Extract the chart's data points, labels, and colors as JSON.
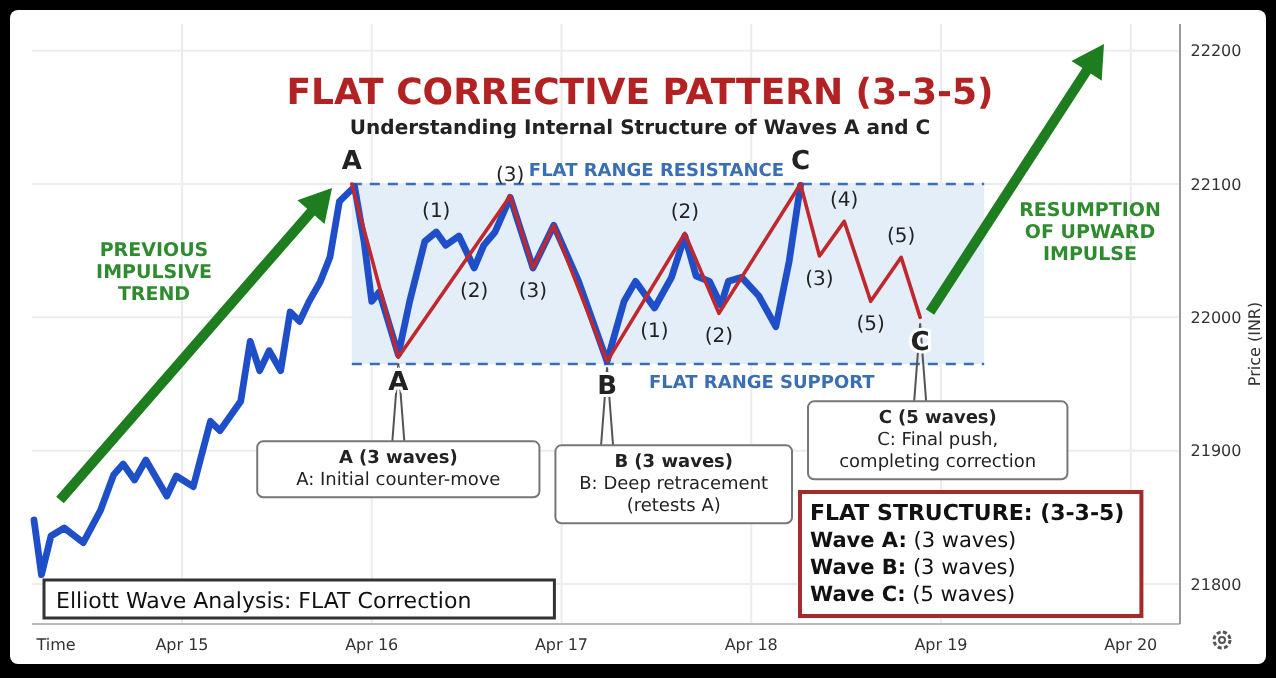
{
  "chart_data": {
    "type": "line",
    "title": "FLAT CORRECTIVE PATTERN (3-3-5)",
    "subtitle": "Understanding Internal Structure of Waves A and C",
    "xlabel": "Time",
    "ylabel": "Price (INR)",
    "xlim": [
      "--04-14T05:02",
      "--04-20T06:14"
    ],
    "xticks": [
      {
        "value": "--04-15",
        "label": "Apr 15"
      },
      {
        "value": "--04-16",
        "label": "Apr 16"
      },
      {
        "value": "--04-17",
        "label": "Apr 17"
      },
      {
        "value": "--04-18",
        "label": "Apr 18"
      },
      {
        "value": "--04-19",
        "label": "Apr 19"
      },
      {
        "value": "--04-20",
        "label": "Apr 20"
      }
    ],
    "ylim": [
      21770,
      22220
    ],
    "yticks": [
      21800,
      21900,
      22000,
      22100,
      22200
    ],
    "grid": true,
    "marker": "none",
    "line_style": "solid",
    "series": [
      {
        "color": "#1f4fc8",
        "x": [
          "--04-14T05:17",
          "--04-14T06:14",
          "--04-14T07:26",
          "--04-14T09:07",
          "--04-14T11:31",
          "--04-14T13:41",
          "--04-14T15:22",
          "--04-14T16:34",
          "--04-14T18:00",
          "--04-14T19:26",
          "--04-14T22:05",
          "--04-14T23:17",
          "--04-15T01:26",
          "--04-15T03:36",
          "--04-15T04:48",
          "--04-15T07:26",
          "--04-15T08:38",
          "--04-15T09:50",
          "--04-15T11:02",
          "--04-15T12:29",
          "--04-15T13:41",
          "--04-15T14:53",
          "--04-15T16:05",
          "--04-15T17:31",
          "--04-15T18:43",
          "--04-15T19:55",
          "--04-15T21:50",
          "--04-15T23:02",
          "--04-16T00:00",
          "--04-16T00:58",
          "--04-16T03:22",
          "--04-16T04:48",
          "--04-16T06:43",
          "--04-16T08:10",
          "--04-16T09:22",
          "--04-16T11:02",
          "--04-16T12:58",
          "--04-16T14:10",
          "--04-16T15:36",
          "--04-16T17:31",
          "--04-16T20:24",
          "--04-16T23:02",
          "--04-17T02:10",
          "--04-17T05:46",
          "--04-17T07:55",
          "--04-17T09:22",
          "--04-17T11:46",
          "--04-17T13:55",
          "--04-17T15:36",
          "--04-17T17:02",
          "--04-17T18:43",
          "--04-17T20:10",
          "--04-17T21:07",
          "--04-17T22:48",
          "--04-18T00:58",
          "--04-18T03:07",
          "--04-18T04:48",
          "--04-18T06:14"
        ],
        "values": [
          21848,
          21807,
          21836,
          21842,
          21831,
          21855,
          21882,
          21890,
          21878,
          21893,
          21866,
          21881,
          21873,
          21922,
          21915,
          21937,
          21982,
          21960,
          21975,
          21960,
          22004,
          21997,
          22012,
          22027,
          22045,
          22087,
          22098,
          22057,
          22012,
          22019,
          21972,
          22012,
          22057,
          22064,
          22054,
          22061,
          22037,
          22054,
          22064,
          22090,
          22037,
          22069,
          22027,
          21967,
          22012,
          22027,
          22007,
          22030,
          22061,
          22031,
          22027,
          22009,
          22027,
          22030,
          22016,
          21993,
          22042,
          22099
        ]
      },
      {
        "color": "#c0282d",
        "x": [
          "--04-15T21:29",
          "--04-16T03:22",
          "--04-16T17:31",
          "--04-16T20:24",
          "--04-16T23:02",
          "--04-17T05:46",
          "--04-17T15:36",
          "--04-17T19:55",
          "--04-18T06:14",
          "--04-18T08:38",
          "--04-18T11:46",
          "--04-18T15:07",
          "--04-18T18:58",
          "--04-18T21:22"
        ],
        "values": [
          22100,
          21970,
          22091,
          22037,
          22069,
          21967,
          22063,
          22003,
          22100,
          22046,
          22072,
          22012,
          22045,
          22000
        ]
      }
    ],
    "ref_lines": [
      {
        "axis": "y",
        "value": 22100,
        "label": "FLAT RANGE RESISTANCE",
        "color": "#3a6fb5",
        "line_style": "dashed"
      },
      {
        "axis": "y",
        "value": 21965,
        "label": "FLAT RANGE SUPPORT",
        "color": "#3a6fb5",
        "line_style": "dashed"
      }
    ],
    "bands": [
      {
        "axis": "y",
        "from": 21965,
        "to": 22100,
        "color": "#e3eef9"
      }
    ],
    "annotations": [
      {
        "text": "A",
        "x": "--04-15T21:29",
        "y": 22100
      },
      {
        "text": "A",
        "x": "--04-16T03:22",
        "y": 21970
      },
      {
        "text": "B",
        "x": "--04-17T05:46",
        "y": 21967
      },
      {
        "text": "C",
        "x": "--04-18T06:14",
        "y": 22100
      },
      {
        "text": "C",
        "x": "--04-18T21:22",
        "y": 22000
      },
      {
        "text": "(3)",
        "x": "--04-16T17:31",
        "y": 22091
      },
      {
        "text": "(1)",
        "x": "--04-16T08:10",
        "y": 22064
      },
      {
        "text": "(2)",
        "x": "--04-16T12:58",
        "y": 22037
      },
      {
        "text": "(3)",
        "x": "--04-16T20:24",
        "y": 22037
      },
      {
        "text": "(1)",
        "x": "--04-17T11:46",
        "y": 22007
      },
      {
        "text": "(2)",
        "x": "--04-17T15:36",
        "y": 22063
      },
      {
        "text": "(2)",
        "x": "--04-17T19:55",
        "y": 22003
      },
      {
        "text": "(3)",
        "x": "--04-18T08:38",
        "y": 22046
      },
      {
        "text": "(4)",
        "x": "--04-18T11:46",
        "y": 22072
      },
      {
        "text": "(5)",
        "x": "--04-18T18:58",
        "y": 22045
      },
      {
        "text": "(5)",
        "x": "--04-18T15:07",
        "y": 22012
      },
      {
        "text": "A (3 waves)\nA: Initial counter-move",
        "x": "--04-16T03:22",
        "y": 21970
      },
      {
        "text": "B (3 waves)\nB: Deep retracement\n(retests A)",
        "x": "--04-17T05:46",
        "y": 21967
      },
      {
        "text": "C (5 waves)\nC: Final push,\ncompleting correction",
        "x": "--04-18T21:22",
        "y": 22000
      },
      "PREVIOUS\nIMPULSIVE\nTREND",
      "RESUMPTION\nOF UPWARD\nIMPULSE",
      "Elliott Wave Analysis: FLAT Correction",
      "FLAT STRUCTURE: (3-3-5)\nWave A: (3 waves)\nWave B: (3 waves)\nWave C: (5 waves)"
    ]
  }
}
